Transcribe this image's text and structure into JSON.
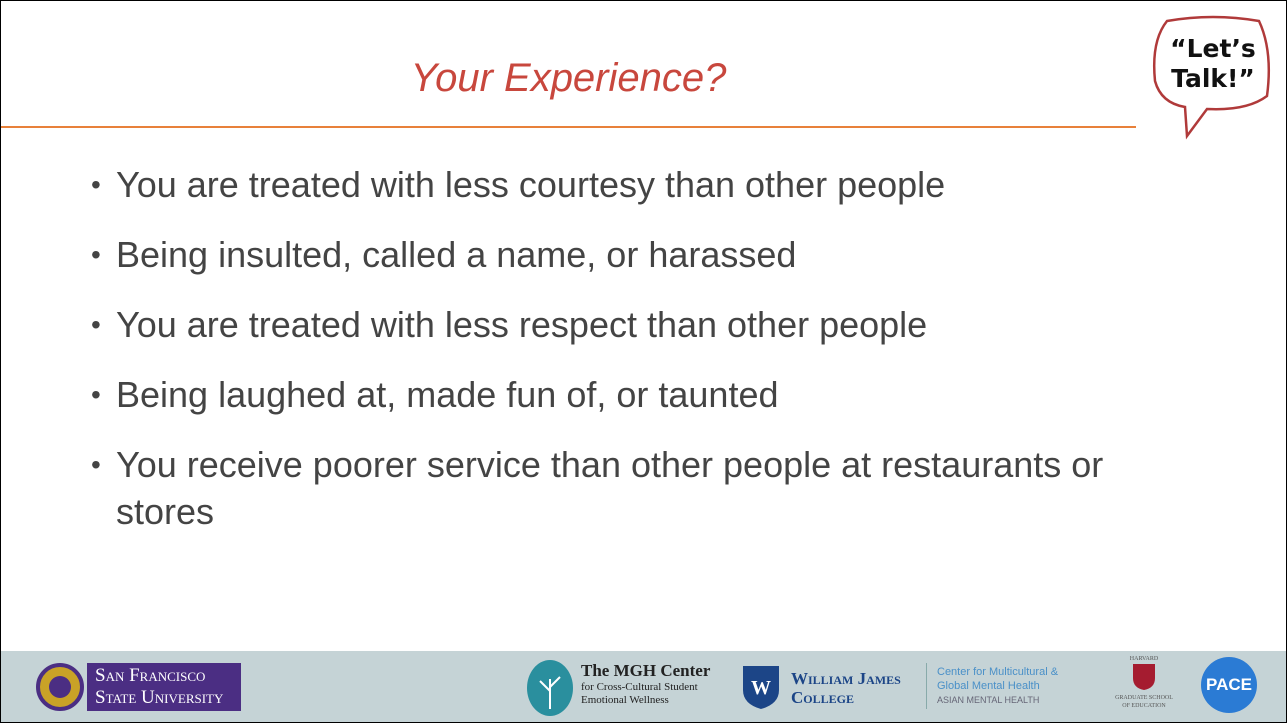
{
  "slide": {
    "title": "Your Experience?",
    "badge": [
      "“Let’s",
      "Talk!”"
    ],
    "bullets": [
      "You are treated with less courtesy than other people",
      "Being insulted, called a name, or harassed",
      "You are treated with less respect than other people",
      "Being laughed at, made fun of, or taunted",
      "You receive poorer service than other people at restaurants or stores"
    ]
  },
  "footer": {
    "sfsu": [
      "San Francisco",
      "State University"
    ],
    "mgh": [
      "The MGH Center",
      "for Cross-Cultural Student",
      "Emotional Wellness"
    ],
    "wjc": [
      "William James",
      "College"
    ],
    "cmgmh": [
      "Center for Multicultural &",
      "Global Mental Health",
      "ASIAN MENTAL HEALTH"
    ],
    "harvard": [
      "HARVARD",
      "GRADUATE SCHOOL",
      "OF EDUCATION"
    ],
    "pace": "PACE"
  }
}
